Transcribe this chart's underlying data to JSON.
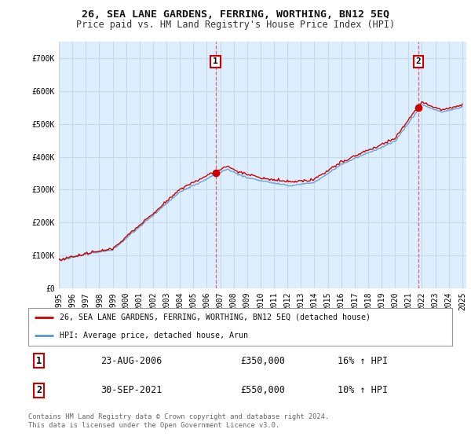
{
  "title": "26, SEA LANE GARDENS, FERRING, WORTHING, BN12 5EQ",
  "subtitle": "Price paid vs. HM Land Registry's House Price Index (HPI)",
  "ylim": [
    0,
    750000
  ],
  "yticks": [
    0,
    100000,
    200000,
    300000,
    400000,
    500000,
    600000,
    700000
  ],
  "ytick_labels": [
    "£0",
    "£100K",
    "£200K",
    "£300K",
    "£400K",
    "£500K",
    "£600K",
    "£700K"
  ],
  "background_color": "#ffffff",
  "plot_bg_color": "#ddeeff",
  "grid_color": "#c8d8e8",
  "red_color": "#cc0000",
  "blue_color": "#5599cc",
  "dashed_color": "#dd4444",
  "sale1_year": 2006.65,
  "sale1_price": 350000,
  "sale2_year": 2021.75,
  "sale2_price": 550000,
  "legend_line1": "26, SEA LANE GARDENS, FERRING, WORTHING, BN12 5EQ (detached house)",
  "legend_line2": "HPI: Average price, detached house, Arun",
  "table_row1": [
    "1",
    "23-AUG-2006",
    "£350,000",
    "16% ↑ HPI"
  ],
  "table_row2": [
    "2",
    "30-SEP-2021",
    "£550,000",
    "10% ↑ HPI"
  ],
  "footer": "Contains HM Land Registry data © Crown copyright and database right 2024.\nThis data is licensed under the Open Government Licence v3.0.",
  "title_fontsize": 9.5,
  "subtitle_fontsize": 8.5,
  "tick_fontsize": 7,
  "annot_fontsize": 8
}
